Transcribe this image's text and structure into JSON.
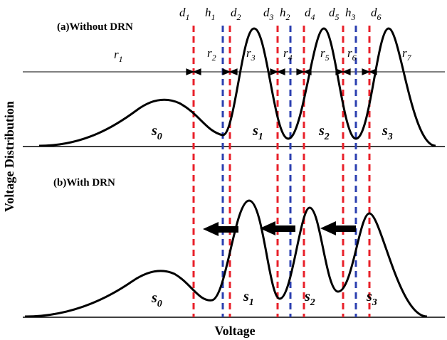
{
  "panels": {
    "top_label": "(a)Without DRN",
    "bottom_label": "(b)With DRN"
  },
  "axes": {
    "ylabel": "Voltage Distribution",
    "xlabel": "Voltage"
  },
  "top_markers": {
    "d_labels": [
      {
        "base": "d",
        "sub": "1"
      },
      {
        "base": "d",
        "sub": "2"
      },
      {
        "base": "d",
        "sub": "3"
      },
      {
        "base": "d",
        "sub": "4"
      },
      {
        "base": "d",
        "sub": "5"
      },
      {
        "base": "d",
        "sub": "6"
      }
    ],
    "h_labels": [
      {
        "base": "h",
        "sub": "1"
      },
      {
        "base": "h",
        "sub": "2"
      },
      {
        "base": "h",
        "sub": "3"
      }
    ],
    "r_labels": [
      {
        "base": "r",
        "sub": "1"
      },
      {
        "base": "r",
        "sub": "2"
      },
      {
        "base": "r",
        "sub": "3"
      },
      {
        "base": "r",
        "sub": "4"
      },
      {
        "base": "r",
        "sub": "5"
      },
      {
        "base": "r",
        "sub": "6"
      },
      {
        "base": "r",
        "sub": "7"
      }
    ]
  },
  "top_states": [
    {
      "base": "s",
      "sub": "0"
    },
    {
      "base": "s",
      "sub": "1"
    },
    {
      "base": "s",
      "sub": "2"
    },
    {
      "base": "s",
      "sub": "3"
    }
  ],
  "bottom_states": [
    {
      "base": "s",
      "sub": "0"
    },
    {
      "base": "s",
      "sub": "1"
    },
    {
      "base": "s",
      "sub": "2"
    },
    {
      "base": "s",
      "sub": "3"
    }
  ],
  "colors": {
    "curve": "#000000",
    "read_reference": "#e8202a",
    "hard_decision": "#2b3fb0",
    "arrow": "#000000"
  }
}
